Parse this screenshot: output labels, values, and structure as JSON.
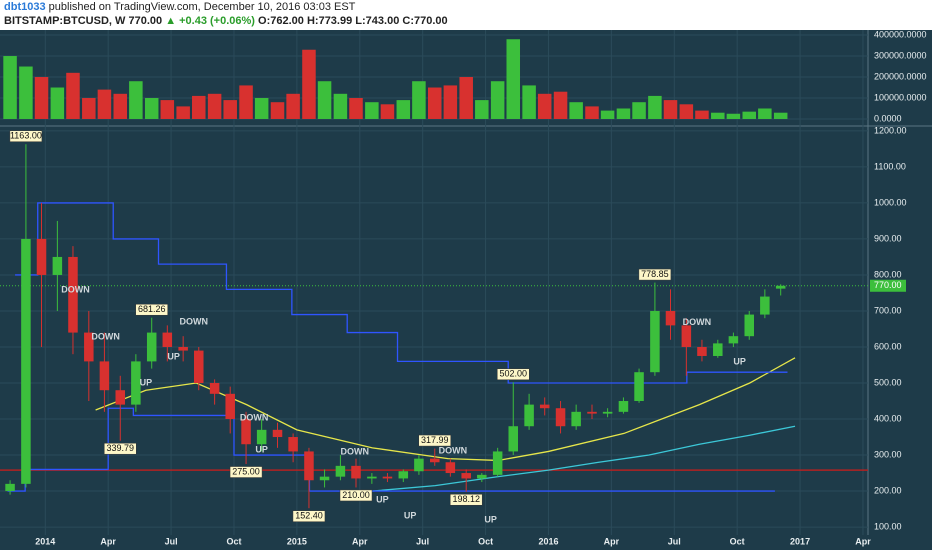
{
  "header": {
    "author": "dbt1033",
    "published": "published on TradingView.com, December 10, 2016 03:03 EST",
    "symbol": "BITSTAMP:BTCUSD, W",
    "last": "770.00",
    "change": "▲ +0.43 (+0.06%)",
    "open": "O:762.00",
    "high": "H:773.99",
    "low": "L:743.00",
    "close": "C:770.00"
  },
  "chart_data": {
    "type": "candlestick",
    "xlim": [
      2013.82,
      2017.27
    ],
    "xticks": [
      {
        "value": 2014,
        "label": "2014"
      },
      {
        "value": 2014.25,
        "label": "Apr"
      },
      {
        "value": 2014.5,
        "label": "Jul"
      },
      {
        "value": 2014.75,
        "label": "Oct"
      },
      {
        "value": 2015,
        "label": "2015"
      },
      {
        "value": 2015.25,
        "label": "Apr"
      },
      {
        "value": 2015.5,
        "label": "Jul"
      },
      {
        "value": 2015.75,
        "label": "Oct"
      },
      {
        "value": 2016,
        "label": "2016"
      },
      {
        "value": 2016.25,
        "label": "Apr"
      },
      {
        "value": 2016.5,
        "label": "Jul"
      },
      {
        "value": 2016.75,
        "label": "Oct"
      },
      {
        "value": 2017,
        "label": "2017"
      },
      {
        "value": 2017.25,
        "label": "Apr"
      }
    ],
    "ylim": [
      78,
      1208
    ],
    "yticks": [
      {
        "value": 100,
        "label": "100.00"
      },
      {
        "value": 200,
        "label": "200.00"
      },
      {
        "value": 300,
        "label": "300.00"
      },
      {
        "value": 400,
        "label": "400.00"
      },
      {
        "value": 500,
        "label": "500.00"
      },
      {
        "value": 600,
        "label": "600.00"
      },
      {
        "value": 700,
        "label": "700.00"
      },
      {
        "value": 800,
        "label": "800.00"
      },
      {
        "value": 900,
        "label": "900.00"
      },
      {
        "value": 1000,
        "label": "1000.00"
      },
      {
        "value": 1100,
        "label": "1100.00"
      },
      {
        "value": 1200,
        "label": "1200.00"
      }
    ],
    "up_color": "#3cbf3c",
    "down_color": "#d8312f",
    "grid": true,
    "x": [
      2013.86,
      2013.923,
      2013.985,
      2014.048,
      2014.11,
      2014.173,
      2014.235,
      2014.298,
      2014.36,
      2014.423,
      2014.485,
      2014.548,
      2014.61,
      2014.673,
      2014.735,
      2014.798,
      2014.86,
      2014.923,
      2014.985,
      2015.048,
      2015.11,
      2015.173,
      2015.235,
      2015.298,
      2015.36,
      2015.423,
      2015.485,
      2015.548,
      2015.61,
      2015.673,
      2015.735,
      2015.798,
      2015.86,
      2015.923,
      2015.985,
      2016.048,
      2016.11,
      2016.173,
      2016.235,
      2016.298,
      2016.36,
      2016.423,
      2016.485,
      2016.548,
      2016.61,
      2016.673,
      2016.735,
      2016.798,
      2016.86,
      2016.923
    ],
    "open": [
      200,
      220,
      900,
      800,
      850,
      640,
      560,
      480,
      440,
      560,
      640,
      600,
      590,
      500,
      470,
      400,
      330,
      370,
      350,
      310,
      230,
      240,
      270,
      235,
      240,
      235,
      255,
      290,
      280,
      250,
      235,
      245,
      310,
      380,
      440,
      430,
      380,
      420,
      415,
      420,
      450,
      530,
      700,
      660,
      600,
      575,
      610,
      630,
      690,
      762
    ],
    "high": [
      230,
      1163,
      1000,
      950,
      880,
      700,
      640,
      520,
      580,
      681.26,
      660,
      630,
      600,
      510,
      490,
      420,
      400,
      390,
      360,
      320,
      260,
      300,
      290,
      250,
      250,
      260,
      300,
      317.99,
      290,
      260,
      250,
      320,
      502,
      470,
      460,
      450,
      440,
      440,
      430,
      460,
      540,
      778.85,
      760,
      680,
      620,
      620,
      640,
      700,
      760,
      773.99
    ],
    "low": [
      190,
      210,
      600,
      700,
      580,
      450,
      420,
      339.79,
      420,
      540,
      560,
      560,
      480,
      440,
      360,
      275,
      310,
      320,
      280,
      152.4,
      210,
      230,
      210,
      220,
      225,
      225,
      245,
      270,
      240,
      198.12,
      225,
      240,
      300,
      370,
      410,
      360,
      370,
      400,
      405,
      415,
      445,
      520,
      620,
      520,
      560,
      570,
      600,
      620,
      680,
      743
    ],
    "close": [
      220,
      900,
      800,
      850,
      640,
      560,
      480,
      440,
      560,
      640,
      600,
      590,
      500,
      470,
      400,
      330,
      370,
      350,
      310,
      230,
      240,
      270,
      235,
      240,
      235,
      255,
      290,
      280,
      250,
      235,
      245,
      310,
      380,
      440,
      430,
      380,
      420,
      415,
      420,
      450,
      530,
      700,
      660,
      600,
      575,
      610,
      630,
      690,
      740,
      770
    ],
    "volume": {
      "ylim": [
        -28600,
        424000
      ],
      "yticks": [
        {
          "value": 0,
          "label": "0.0000"
        },
        {
          "value": 100000,
          "label": "100000.0000"
        },
        {
          "value": 200000,
          "label": "200000.0000"
        },
        {
          "value": 300000,
          "label": "300000.0000"
        },
        {
          "value": 400000,
          "label": "400000.0000"
        }
      ],
      "values": [
        300000,
        250000,
        200000,
        150000,
        220000,
        100000,
        140000,
        120000,
        180000,
        100000,
        90000,
        60000,
        110000,
        120000,
        90000,
        160000,
        100000,
        80000,
        120000,
        330000,
        180000,
        120000,
        100000,
        80000,
        70000,
        90000,
        180000,
        150000,
        160000,
        200000,
        90000,
        180000,
        380000,
        160000,
        120000,
        130000,
        80000,
        60000,
        40000,
        50000,
        80000,
        110000,
        90000,
        70000,
        40000,
        30000,
        25000,
        35000,
        50000,
        30000
      ]
    },
    "lines": [
      {
        "color": "#e6e64a",
        "x": [
          2014.2,
          2014.4,
          2014.6,
          2014.8,
          2015.0,
          2015.3,
          2015.6,
          2015.8,
          2016.0,
          2016.3,
          2016.6,
          2016.8,
          2016.98
        ],
        "values": [
          425,
          480,
          500,
          440,
          370,
          320,
          290,
          285,
          310,
          360,
          440,
          500,
          570
        ]
      },
      {
        "color": "#3cc8d8",
        "x": [
          2015.3,
          2015.55,
          2015.8,
          2016.0,
          2016.2,
          2016.4,
          2016.6,
          2016.8,
          2016.98
        ],
        "values": [
          200,
          215,
          240,
          258,
          280,
          300,
          330,
          355,
          380
        ]
      },
      {
        "color": "#2f55ff",
        "x": [
          2013.88,
          2013.97,
          2013.97,
          2014.27,
          2014.27,
          2014.45,
          2014.45,
          2014.72,
          2014.72,
          2014.98,
          2014.98,
          2015.2,
          2015.2,
          2015.4,
          2015.4,
          2015.84,
          2015.84,
          2016.55,
          2016.55,
          2016.95
        ],
        "values": [
          800,
          800,
          1000,
          1000,
          900,
          900,
          830,
          830,
          760,
          760,
          690,
          690,
          640,
          640,
          560,
          560,
          500,
          500,
          530,
          530
        ]
      },
      {
        "color": "#2f55ff",
        "x": [
          2013.85,
          2013.92,
          2013.92,
          2014.25,
          2014.25,
          2014.35,
          2014.35,
          2014.75,
          2014.75,
          2015.05,
          2015.05,
          2016.9
        ],
        "values": [
          200,
          200,
          260,
          260,
          430,
          430,
          410,
          410,
          300,
          300,
          200,
          200
        ]
      }
    ],
    "levels": [
      {
        "value": 258,
        "color": "#b22222"
      }
    ],
    "last_price": {
      "value": 770,
      "label": "770.00",
      "color": "#3cbf3c"
    },
    "price_labels": [
      {
        "x": 2013.923,
        "value": 1163,
        "label": "1163.00"
      },
      {
        "x": 2014.298,
        "value": 339.79,
        "label": "339.79"
      },
      {
        "x": 2014.423,
        "value": 681.26,
        "label": "681.26"
      },
      {
        "x": 2014.798,
        "value": 275,
        "label": "275.00"
      },
      {
        "x": 2015.048,
        "value": 152.4,
        "label": "152.40"
      },
      {
        "x": 2015.235,
        "value": 210,
        "label": "210.00"
      },
      {
        "x": 2015.548,
        "value": 317.99,
        "label": "317.99"
      },
      {
        "x": 2015.673,
        "value": 198.12,
        "label": "198.12"
      },
      {
        "x": 2015.86,
        "value": 502,
        "label": "502.00"
      },
      {
        "x": 2016.423,
        "value": 778.85,
        "label": "778.85"
      }
    ],
    "annotations": [
      {
        "text": "DOWN",
        "x": 2014.12,
        "y": 758
      },
      {
        "text": "DOWN",
        "x": 2014.24,
        "y": 628
      },
      {
        "text": "UP",
        "x": 2014.4,
        "y": 500
      },
      {
        "text": "UP",
        "x": 2014.51,
        "y": 572
      },
      {
        "text": "DOWN",
        "x": 2014.59,
        "y": 669
      },
      {
        "text": "DOWN",
        "x": 2014.83,
        "y": 403
      },
      {
        "text": "UP",
        "x": 2014.86,
        "y": 314
      },
      {
        "text": "DOWN",
        "x": 2015.23,
        "y": 308
      },
      {
        "text": "UP",
        "x": 2015.34,
        "y": 175
      },
      {
        "text": "DOWN",
        "x": 2015.62,
        "y": 311
      },
      {
        "text": "UP",
        "x": 2015.45,
        "y": 130
      },
      {
        "text": "UP",
        "x": 2015.77,
        "y": 119
      },
      {
        "text": "DOWN",
        "x": 2016.59,
        "y": 667
      },
      {
        "text": "UP",
        "x": 2016.76,
        "y": 558
      }
    ]
  }
}
